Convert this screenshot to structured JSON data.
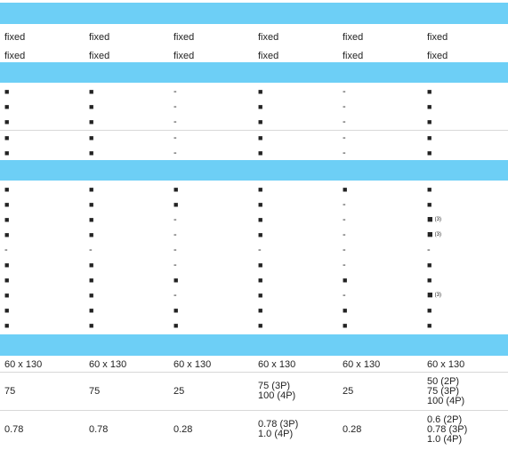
{
  "sections": [
    [
      [
        "fixed",
        "fixed",
        "fixed",
        "fixed",
        "fixed",
        "fixed"
      ],
      [
        "fixed",
        "fixed",
        "fixed",
        "fixed",
        "fixed",
        "fixed"
      ]
    ],
    [
      [
        "■",
        "■",
        "-",
        "■",
        "-",
        "■"
      ],
      [
        "■",
        "■",
        "-",
        "■",
        "-",
        "■"
      ],
      [
        "■",
        "■",
        "-",
        "■",
        "-",
        "■"
      ],
      [
        "■",
        "■",
        "-",
        "■",
        "-",
        "■"
      ],
      [
        "■",
        "■",
        "-",
        "■",
        "-",
        "■"
      ]
    ],
    [
      [
        "■",
        "■",
        "■",
        "■",
        "■",
        "■"
      ],
      [
        "■",
        "■",
        "■",
        "■",
        "-",
        "■"
      ],
      [
        "■",
        "■",
        "-",
        "■",
        "-",
        {
          "text": "■",
          "note": "(3)"
        }
      ],
      [
        "■",
        "■",
        "-",
        "■",
        "-",
        {
          "text": "■",
          "note": "(3)"
        }
      ],
      [
        "-",
        "-",
        "-",
        "-",
        "-",
        "-"
      ],
      [
        "■",
        "■",
        "-",
        "■",
        "-",
        "■"
      ],
      [
        "■",
        "■",
        "■",
        "■",
        "■",
        "■"
      ],
      [
        "■",
        "■",
        "-",
        "■",
        "-",
        {
          "text": "■",
          "note": "(3)"
        }
      ],
      [
        "■",
        "■",
        "■",
        "■",
        "■",
        "■"
      ],
      [
        "■",
        "■",
        "■",
        "■",
        "■",
        "■"
      ]
    ],
    [
      [
        "60 x 130",
        "60 x 130",
        "60 x 130",
        "60 x 130",
        "60 x 130",
        "60 x 130"
      ],
      [
        "75",
        "75",
        "25",
        [
          "75 (3P)",
          "100 (4P)"
        ],
        "25",
        [
          "50 (2P)",
          "75 (3P)",
          "100 (4P)"
        ]
      ],
      [
        "0.78",
        "0.78",
        "0.28",
        [
          "0.78 (3P)",
          "1.0 (4P)"
        ],
        "0.28",
        [
          "0.6 (2P)",
          "0.78 (3P)",
          "1.0 (4P)"
        ]
      ]
    ]
  ]
}
